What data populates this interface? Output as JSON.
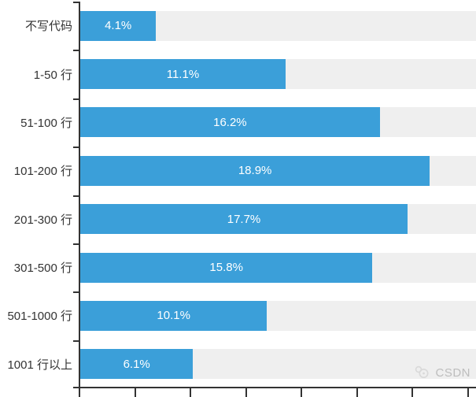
{
  "chart_data": {
    "type": "bar",
    "orientation": "horizontal",
    "title": "",
    "xlabel": "",
    "ylabel": "",
    "categories": [
      "不写代码",
      "1-50 行",
      "51-100 行",
      "101-200 行",
      "201-300 行",
      "301-500 行",
      "501-1000 行",
      "1001 行以上"
    ],
    "values": [
      4.1,
      11.1,
      16.2,
      18.9,
      17.7,
      15.8,
      10.1,
      6.1
    ],
    "value_labels": [
      "4.1%",
      "11.1%",
      "16.2%",
      "18.9%",
      "17.7%",
      "15.8%",
      "10.1%",
      "6.1%"
    ],
    "xlim": [
      0,
      21.4
    ],
    "x_tick_interval": 3,
    "x_tick_count": 8,
    "y_tick_count": 9,
    "grid": false,
    "legend": false,
    "value_label_position": "center-inside",
    "track_full_width": true
  },
  "colors": {
    "bar": "#3B9FD9",
    "track": "#EFEFEF",
    "axis": "#333333",
    "category_label": "#333333",
    "value_label": "#FFFFFF",
    "watermark": "#BDBDBD"
  },
  "watermark": {
    "text": "CSDN",
    "icon": "csdn-logo-icon"
  }
}
